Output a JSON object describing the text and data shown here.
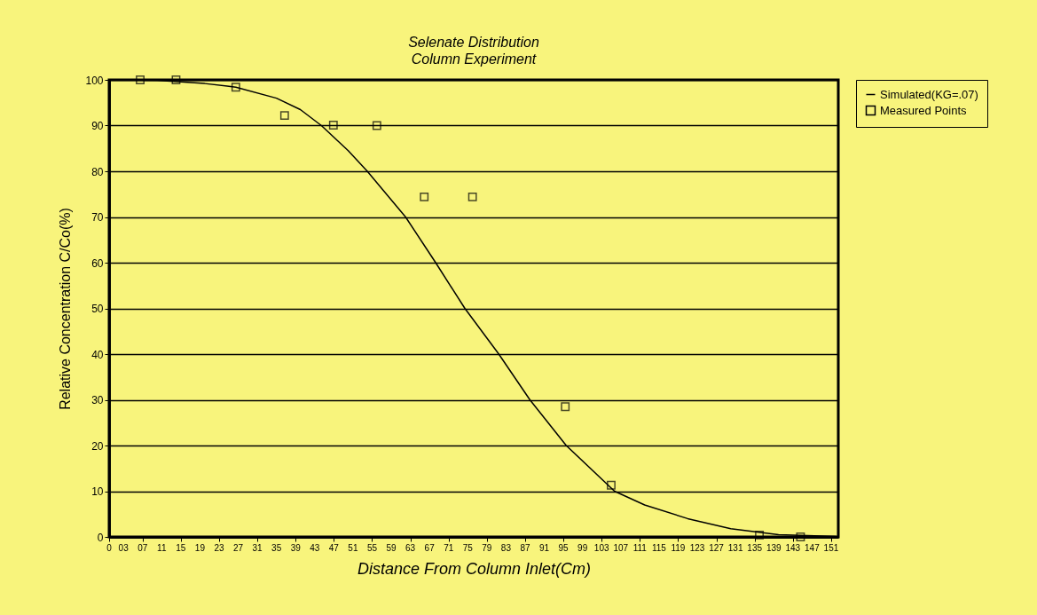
{
  "chart_data": {
    "type": "line",
    "title": "Selenate Distribution",
    "subtitle": "Column Experiment",
    "xlabel": "Distance From Column Inlet(Cm)",
    "ylabel": "Relative Concentration C/Co(%)",
    "xlim": [
      0,
      152.5
    ],
    "xticks": [
      0,
      {
        "value": 3,
        "label": "03"
      },
      {
        "value": 7,
        "label": "07"
      },
      11,
      15,
      19,
      23,
      27,
      31,
      35,
      39,
      43,
      47,
      51,
      55,
      59,
      63,
      67,
      71,
      75,
      79,
      83,
      87,
      91,
      95,
      99,
      103,
      107,
      111,
      115,
      119,
      123,
      127,
      131,
      135,
      139,
      143,
      147,
      151
    ],
    "ylim": [
      0,
      100
    ],
    "yticks": [
      0,
      10,
      20,
      30,
      40,
      50,
      60,
      70,
      80,
      90,
      100
    ],
    "grid": "y",
    "legend": "right",
    "series": [
      {
        "name": "Simulated(KG=.07)",
        "color": "#000000",
        "type": "line",
        "marker": "none",
        "x": [
          0,
          10,
          20,
          26.5,
          35,
          40,
          44.4,
          50,
          54,
          62,
          68.3,
          74.4,
          81.5,
          88,
          95.6,
          105.7,
          112,
          121,
          130,
          140,
          152
        ],
        "values": [
          100,
          99.9,
          99.2,
          98.4,
          96,
          93.5,
          90,
          84.5,
          80,
          70,
          60,
          50,
          40,
          30,
          20,
          10,
          7,
          4,
          1.8,
          0.5,
          0.1
        ]
      },
      {
        "name": "Measured Points",
        "color": "#000000",
        "type": "scatter",
        "marker": "square",
        "x": [
          6.5,
          14,
          26.5,
          36.7,
          46.9,
          56,
          65.9,
          76,
          95.4,
          105,
          136,
          144.6
        ],
        "values": [
          100,
          100,
          98.4,
          92.2,
          90.1,
          90,
          74.4,
          74.4,
          28.5,
          11.3,
          0.4,
          0
        ]
      }
    ]
  }
}
